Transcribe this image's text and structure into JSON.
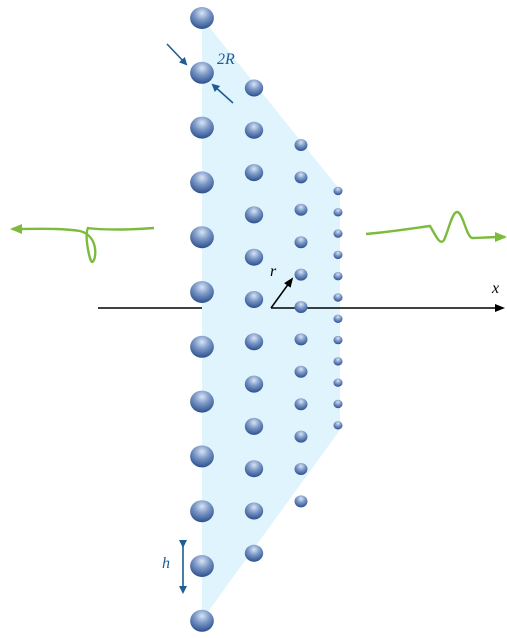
{
  "labels": {
    "diameter": "2R",
    "spacing": "h",
    "radial": "r",
    "axis": "x"
  },
  "colors": {
    "sphere_light": "#d8e4f4",
    "sphere_mid": "#7b98c6",
    "sphere_dark": "#2c4f8e",
    "panel_fill": "#daf2fd",
    "wave": "#7dbb3e",
    "annotation": "#1f5d93",
    "axis": "#000000"
  },
  "icons": {
    "left_wave_arrow": "arrow-left",
    "right_wave_arrow": "arrow-right",
    "diameter_arrows": "inward-arrows",
    "spacing_arrow": "double-headed-arrow",
    "radial_arrow": "arrow-up-right",
    "axis_arrow": "arrow-right"
  }
}
